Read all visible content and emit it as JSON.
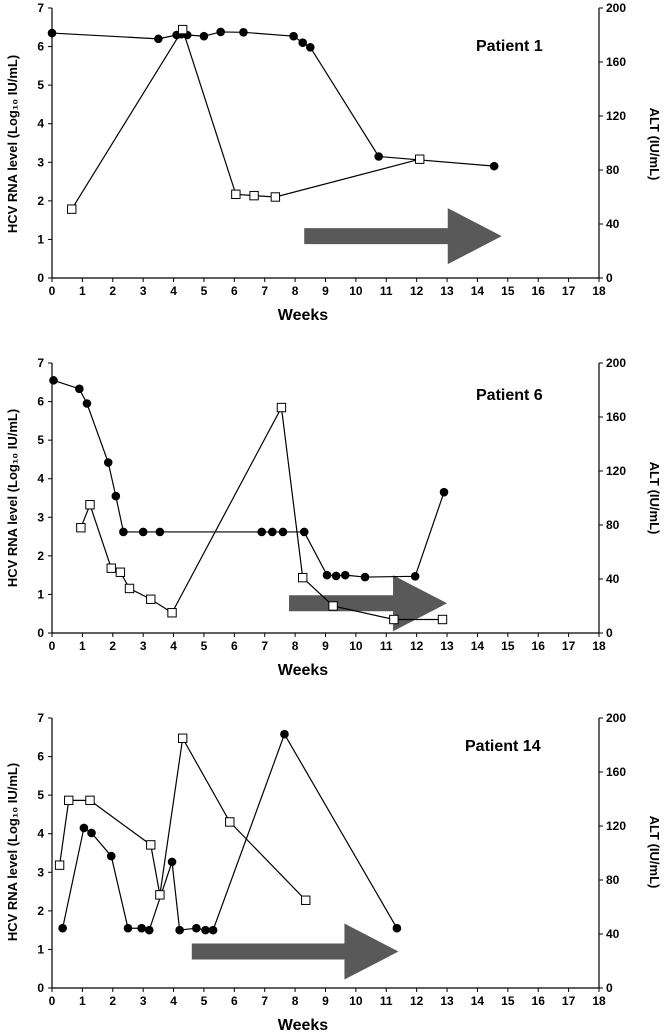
{
  "colors": {
    "rna_marker": "#000000",
    "alt_marker": "#ffffff",
    "line": "#000000",
    "arrow": "#595959"
  },
  "chart_data": [
    {
      "type": "line",
      "title": "Patient 1",
      "xlabel": "Weeks",
      "ylabel": "HCV RNA level (Log₁₀ IU/mL)",
      "y2label": "ALT (IU/mL)",
      "xlim": [
        0,
        18
      ],
      "ylim": [
        0,
        7
      ],
      "y2lim": [
        0,
        200
      ],
      "xticks": [
        "0",
        "1",
        "2",
        "3",
        "4",
        "5",
        "6",
        "7",
        "8",
        "9",
        "10",
        "11",
        "12",
        "13",
        "14",
        "15",
        "16",
        "17",
        "18"
      ],
      "yticks": [
        "0",
        "1",
        "2",
        "3",
        "4",
        "5",
        "6",
        "7"
      ],
      "y2ticks": [
        "0",
        "40",
        "80",
        "120",
        "160",
        "200"
      ],
      "grid": false,
      "series": [
        {
          "axis": "left",
          "marker": "filled-circle",
          "x": [
            0,
            3.5,
            4.1,
            4.25,
            4.45,
            5.0,
            5.55,
            6.3,
            7.95,
            8.25,
            8.5,
            10.75,
            14.55
          ],
          "y": [
            6.35,
            6.2,
            6.3,
            6.32,
            6.3,
            6.27,
            6.38,
            6.37,
            6.27,
            6.1,
            5.98,
            3.15,
            2.9
          ]
        },
        {
          "axis": "right",
          "marker": "open-square",
          "x": [
            0.65,
            4.3,
            6.05,
            6.65,
            7.35,
            12.1
          ],
          "y": [
            51,
            184,
            62,
            61,
            60,
            88
          ]
        }
      ],
      "arrow": {
        "x_start": 8.3,
        "x_end": 14.8,
        "y_center": 31
      }
    },
    {
      "type": "line",
      "title": "Patient 6",
      "xlabel": "Weeks",
      "ylabel": "HCV RNA level (Log₁₀ IU/mL)",
      "y2label": "ALT (IU/mL)",
      "xlim": [
        0,
        18
      ],
      "ylim": [
        0,
        7
      ],
      "y2lim": [
        0,
        200
      ],
      "xticks": [
        "0",
        "1",
        "2",
        "3",
        "4",
        "5",
        "6",
        "7",
        "8",
        "9",
        "10",
        "11",
        "12",
        "13",
        "14",
        "15",
        "16",
        "17",
        "18"
      ],
      "yticks": [
        "0",
        "1",
        "2",
        "3",
        "4",
        "5",
        "6",
        "7"
      ],
      "y2ticks": [
        "0",
        "40",
        "80",
        "120",
        "160",
        "200"
      ],
      "grid": false,
      "series": [
        {
          "axis": "left",
          "marker": "filled-circle",
          "x": [
            0.05,
            0.9,
            1.15,
            1.85,
            2.1,
            2.35,
            3.0,
            3.55,
            6.9,
            7.25,
            7.6,
            8.3,
            9.05,
            9.35,
            9.65,
            10.3,
            11.95,
            12.9
          ],
          "y": [
            6.55,
            6.33,
            5.95,
            4.42,
            3.55,
            2.62,
            2.62,
            2.62,
            2.62,
            2.62,
            2.62,
            2.62,
            1.5,
            1.48,
            1.5,
            1.45,
            1.47,
            3.65
          ]
        },
        {
          "axis": "right",
          "marker": "open-square",
          "x": [
            0.95,
            1.25,
            1.95,
            2.25,
            2.55,
            3.25,
            3.95,
            7.55,
            8.25,
            9.25,
            11.25,
            12.85
          ],
          "y": [
            78,
            95,
            48,
            45,
            33,
            25,
            15,
            167,
            41,
            20,
            10,
            10
          ]
        }
      ],
      "arrow": {
        "x_start": 7.8,
        "x_end": 13.0,
        "y_center": 22
      }
    },
    {
      "type": "line",
      "title": "Patient 14",
      "xlabel": "Weeks",
      "ylabel": "HCV RNA level (Log₁₀ IU/mL)",
      "y2label": "ALT (IU/mL)",
      "xlim": [
        0,
        18
      ],
      "ylim": [
        0,
        7
      ],
      "y2lim": [
        0,
        200
      ],
      "xticks": [
        "0",
        "1",
        "2",
        "3",
        "4",
        "5",
        "6",
        "7",
        "8",
        "9",
        "10",
        "11",
        "12",
        "13",
        "14",
        "15",
        "16",
        "17",
        "18"
      ],
      "yticks": [
        "0",
        "1",
        "2",
        "3",
        "4",
        "5",
        "6",
        "7"
      ],
      "y2ticks": [
        "0",
        "40",
        "80",
        "120",
        "160",
        "200"
      ],
      "grid": false,
      "series": [
        {
          "axis": "left",
          "marker": "filled-circle",
          "x": [
            0.35,
            1.05,
            1.3,
            1.95,
            2.5,
            2.95,
            3.2,
            3.95,
            4.2,
            4.75,
            5.05,
            5.3,
            7.65,
            11.35
          ],
          "y": [
            1.55,
            4.15,
            4.02,
            3.42,
            1.55,
            1.55,
            1.5,
            3.27,
            1.5,
            1.55,
            1.5,
            1.5,
            6.58,
            1.55
          ]
        },
        {
          "axis": "right",
          "marker": "open-square",
          "x": [
            0.25,
            0.55,
            1.25,
            3.25,
            3.55,
            4.3,
            5.85,
            8.35
          ],
          "y": [
            91,
            139,
            139,
            106,
            69,
            185,
            123,
            65
          ]
        }
      ],
      "arrow": {
        "x_start": 4.6,
        "x_end": 11.4,
        "y_center": 27
      }
    }
  ]
}
